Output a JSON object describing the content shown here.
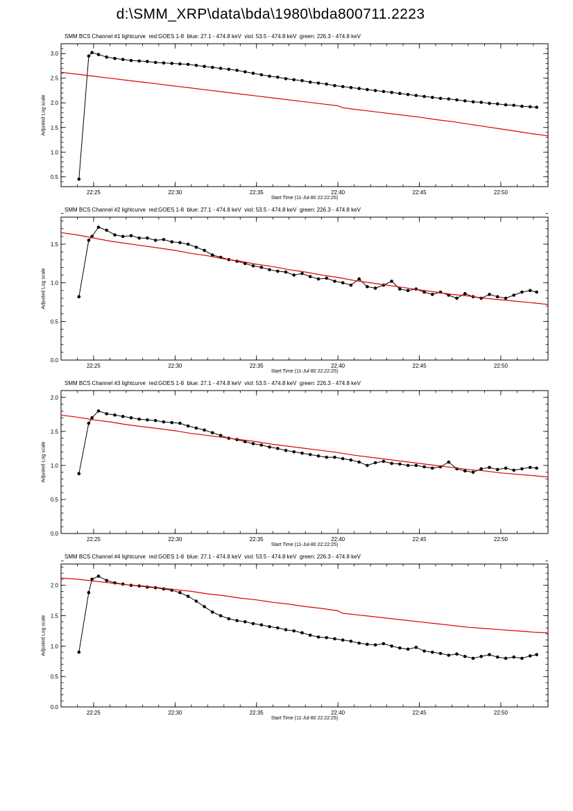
{
  "page": {
    "title": "d:\\SMM_XRP\\data\\bda\\1980\\bda800711.2223"
  },
  "colors": {
    "bcs_series": "#000000",
    "goes_series": "#dd0000",
    "axes": "#000000",
    "background": "#ffffff"
  },
  "chart_data": [
    {
      "type": "line",
      "title": "SMM BCS Channel #1 lightcurve  red:GOES 1-8  blue: 27.1 - 474.8 keV  viol: 53.5 - 474.8 keV  green: 226.3 - 474.8 keV",
      "xlabel": "Start Time (11-Jul-80 22:22:25)",
      "ylabel": "Adjusted Log scale",
      "x_unit": "minutes after 22:00",
      "xlim": [
        23.0,
        52.9
      ],
      "ylim": [
        0.3,
        3.2
      ],
      "y_ticks": [
        0.5,
        1.0,
        1.5,
        2.0,
        2.5,
        3.0
      ],
      "x_ticks": [
        {
          "x": 25,
          "label": "22:25"
        },
        {
          "x": 30,
          "label": "22:30"
        },
        {
          "x": 35,
          "label": "22:35"
        },
        {
          "x": 40,
          "label": "22:40"
        },
        {
          "x": 45,
          "label": "22:45"
        },
        {
          "x": 50,
          "label": "22:50"
        }
      ],
      "grid": false,
      "legend": "none",
      "series": [
        {
          "name": "SMM BCS Channel 1 (black, filled-circle markers)",
          "color": "#000000",
          "marker": true,
          "x": [
            24.1,
            24.7,
            24.9,
            25.3,
            25.8,
            26.3,
            26.8,
            27.3,
            27.8,
            28.3,
            28.8,
            29.3,
            29.8,
            30.3,
            30.8,
            31.3,
            31.8,
            32.3,
            32.8,
            33.3,
            33.8,
            34.3,
            34.8,
            35.3,
            35.8,
            36.3,
            36.8,
            37.3,
            37.8,
            38.3,
            38.8,
            39.3,
            39.8,
            40.3,
            40.8,
            41.3,
            41.8,
            42.3,
            42.8,
            43.3,
            43.8,
            44.3,
            44.8,
            45.3,
            45.8,
            46.3,
            46.8,
            47.3,
            47.8,
            48.3,
            48.8,
            49.3,
            49.8,
            50.3,
            50.8,
            51.3,
            51.8,
            52.2
          ],
          "y": [
            0.45,
            2.95,
            3.02,
            2.98,
            2.93,
            2.9,
            2.88,
            2.86,
            2.85,
            2.84,
            2.82,
            2.81,
            2.8,
            2.79,
            2.78,
            2.76,
            2.74,
            2.72,
            2.7,
            2.68,
            2.66,
            2.63,
            2.6,
            2.57,
            2.54,
            2.52,
            2.49,
            2.47,
            2.45,
            2.42,
            2.4,
            2.38,
            2.35,
            2.33,
            2.31,
            2.29,
            2.27,
            2.25,
            2.23,
            2.21,
            2.19,
            2.17,
            2.15,
            2.13,
            2.11,
            2.09,
            2.08,
            2.06,
            2.04,
            2.02,
            2.01,
            1.99,
            1.98,
            1.96,
            1.95,
            1.93,
            1.92,
            1.91
          ]
        },
        {
          "name": "GOES 1-8 (red line)",
          "color": "#dd0000",
          "marker": false,
          "x": [
            23.0,
            24.0,
            25.0,
            26.0,
            27.0,
            28.0,
            29.0,
            30.0,
            31.0,
            32.0,
            33.0,
            34.0,
            35.0,
            36.0,
            37.0,
            38.0,
            39.0,
            40.0,
            40.3,
            41.0,
            42.0,
            43.0,
            44.0,
            45.0,
            46.0,
            47.0,
            48.0,
            49.0,
            50.0,
            51.0,
            52.0,
            52.9
          ],
          "y": [
            2.62,
            2.58,
            2.54,
            2.5,
            2.46,
            2.42,
            2.38,
            2.34,
            2.3,
            2.26,
            2.22,
            2.18,
            2.14,
            2.1,
            2.06,
            2.02,
            1.98,
            1.94,
            1.9,
            1.87,
            1.83,
            1.79,
            1.75,
            1.71,
            1.66,
            1.62,
            1.57,
            1.52,
            1.47,
            1.42,
            1.37,
            1.33
          ]
        }
      ]
    },
    {
      "type": "line",
      "title": "SMM BCS Channel #2 lightcurve  red:GOES 1-8  blue: 27.1 - 474.8 keV  viol: 53.5 - 474.8 keV  green: 226.3 - 474.8 keV",
      "xlabel": "Start Time (11-Jul-80 22:22:25)",
      "ylabel": "Adjusted Log scale",
      "x_unit": "minutes after 22:00",
      "xlim": [
        23.0,
        52.9
      ],
      "ylim": [
        0.0,
        1.85
      ],
      "y_ticks": [
        0.0,
        0.5,
        1.0,
        1.5
      ],
      "x_ticks": [
        {
          "x": 25,
          "label": "22:25"
        },
        {
          "x": 30,
          "label": "22:30"
        },
        {
          "x": 35,
          "label": "22:35"
        },
        {
          "x": 40,
          "label": "22:40"
        },
        {
          "x": 45,
          "label": "22:45"
        },
        {
          "x": 50,
          "label": "22:50"
        }
      ],
      "grid": false,
      "legend": "none",
      "series": [
        {
          "name": "SMM BCS Channel 2 (black, filled-circle markers)",
          "color": "#000000",
          "marker": true,
          "x": [
            24.1,
            24.7,
            24.9,
            25.3,
            25.8,
            26.3,
            26.8,
            27.3,
            27.8,
            28.3,
            28.8,
            29.3,
            29.8,
            30.3,
            30.8,
            31.3,
            31.8,
            32.3,
            32.8,
            33.3,
            33.8,
            34.3,
            34.8,
            35.3,
            35.8,
            36.3,
            36.8,
            37.3,
            37.8,
            38.3,
            38.8,
            39.3,
            39.8,
            40.3,
            40.8,
            41.3,
            41.8,
            42.3,
            42.8,
            43.3,
            43.8,
            44.3,
            44.8,
            45.3,
            45.8,
            46.3,
            46.8,
            47.3,
            47.8,
            48.3,
            48.8,
            49.3,
            49.8,
            50.3,
            50.8,
            51.3,
            51.8,
            52.2
          ],
          "y": [
            0.82,
            1.55,
            1.6,
            1.72,
            1.68,
            1.62,
            1.6,
            1.61,
            1.58,
            1.58,
            1.55,
            1.56,
            1.53,
            1.52,
            1.5,
            1.46,
            1.42,
            1.36,
            1.33,
            1.3,
            1.28,
            1.25,
            1.22,
            1.2,
            1.17,
            1.15,
            1.14,
            1.1,
            1.12,
            1.08,
            1.05,
            1.06,
            1.02,
            1.0,
            0.97,
            1.05,
            0.95,
            0.93,
            0.97,
            1.02,
            0.92,
            0.9,
            0.92,
            0.88,
            0.85,
            0.88,
            0.84,
            0.8,
            0.86,
            0.82,
            0.8,
            0.85,
            0.82,
            0.8,
            0.84,
            0.88,
            0.9,
            0.88
          ]
        },
        {
          "name": "GOES 1-8 (red line)",
          "color": "#dd0000",
          "marker": false,
          "x": [
            23.0,
            24.0,
            25.0,
            26.0,
            27.0,
            28.0,
            29.0,
            30.0,
            31.0,
            32.0,
            33.0,
            34.0,
            35.0,
            36.0,
            37.0,
            38.0,
            39.0,
            40.0,
            41.0,
            42.0,
            43.0,
            44.0,
            45.0,
            46.0,
            47.0,
            48.0,
            49.0,
            50.0,
            51.0,
            52.0,
            52.9
          ],
          "y": [
            1.65,
            1.62,
            1.58,
            1.54,
            1.51,
            1.48,
            1.45,
            1.42,
            1.38,
            1.35,
            1.31,
            1.28,
            1.24,
            1.21,
            1.17,
            1.14,
            1.1,
            1.07,
            1.03,
            1.0,
            0.97,
            0.94,
            0.91,
            0.88,
            0.85,
            0.83,
            0.8,
            0.78,
            0.76,
            0.74,
            0.72
          ]
        }
      ]
    },
    {
      "type": "line",
      "title": "SMM BCS Channel #3 lightcurve  red:GOES 1-8  blue: 27.1 - 474.8 keV  viol: 53.5 - 474.8 keV  green: 226.3 - 474.8 keV",
      "xlabel": "Start Time (11-Jul-80 22:22:25)",
      "ylabel": "Adjusted Log scale",
      "x_unit": "minutes after 22:00",
      "xlim": [
        23.0,
        52.9
      ],
      "ylim": [
        0.0,
        2.1
      ],
      "y_ticks": [
        0.0,
        0.5,
        1.0,
        1.5,
        2.0
      ],
      "x_ticks": [
        {
          "x": 25,
          "label": "22:25"
        },
        {
          "x": 30,
          "label": "22:30"
        },
        {
          "x": 35,
          "label": "22:35"
        },
        {
          "x": 40,
          "label": "22:40"
        },
        {
          "x": 45,
          "label": "22:45"
        },
        {
          "x": 50,
          "label": "22:50"
        }
      ],
      "grid": false,
      "legend": "none",
      "series": [
        {
          "name": "SMM BCS Channel 3 (black, filled-circle markers)",
          "color": "#000000",
          "marker": true,
          "x": [
            24.1,
            24.7,
            24.9,
            25.3,
            25.8,
            26.3,
            26.8,
            27.3,
            27.8,
            28.3,
            28.8,
            29.3,
            29.8,
            30.3,
            30.8,
            31.3,
            31.8,
            32.3,
            32.8,
            33.3,
            33.8,
            34.3,
            34.8,
            35.3,
            35.8,
            36.3,
            36.8,
            37.3,
            37.8,
            38.3,
            38.8,
            39.3,
            39.8,
            40.3,
            40.8,
            41.3,
            41.8,
            42.3,
            42.8,
            43.3,
            43.8,
            44.3,
            44.8,
            45.3,
            45.8,
            46.3,
            46.8,
            47.3,
            47.8,
            48.3,
            48.8,
            49.3,
            49.8,
            50.3,
            50.8,
            51.3,
            51.8,
            52.2
          ],
          "y": [
            0.88,
            1.62,
            1.7,
            1.8,
            1.76,
            1.74,
            1.72,
            1.7,
            1.68,
            1.67,
            1.66,
            1.64,
            1.63,
            1.62,
            1.58,
            1.55,
            1.52,
            1.48,
            1.44,
            1.4,
            1.38,
            1.35,
            1.32,
            1.3,
            1.27,
            1.25,
            1.22,
            1.2,
            1.18,
            1.16,
            1.14,
            1.12,
            1.12,
            1.1,
            1.08,
            1.05,
            1.0,
            1.04,
            1.06,
            1.03,
            1.02,
            1.0,
            1.0,
            0.98,
            0.96,
            0.98,
            1.05,
            0.95,
            0.92,
            0.9,
            0.95,
            0.97,
            0.94,
            0.96,
            0.93,
            0.95,
            0.97,
            0.96
          ]
        },
        {
          "name": "GOES 1-8 (red line)",
          "color": "#dd0000",
          "marker": false,
          "x": [
            23.0,
            24.0,
            25.0,
            26.0,
            27.0,
            28.0,
            29.0,
            30.0,
            31.0,
            32.0,
            33.0,
            34.0,
            35.0,
            36.0,
            37.0,
            38.0,
            39.0,
            40.0,
            41.0,
            42.0,
            43.0,
            44.0,
            45.0,
            46.0,
            47.0,
            48.0,
            49.0,
            50.0,
            51.0,
            52.0,
            52.9
          ],
          "y": [
            1.74,
            1.71,
            1.67,
            1.64,
            1.6,
            1.57,
            1.54,
            1.51,
            1.47,
            1.44,
            1.41,
            1.38,
            1.35,
            1.31,
            1.28,
            1.25,
            1.22,
            1.19,
            1.15,
            1.12,
            1.09,
            1.06,
            1.03,
            1.0,
            0.97,
            0.94,
            0.92,
            0.89,
            0.87,
            0.85,
            0.83
          ]
        }
      ]
    },
    {
      "type": "line",
      "title": "SMM BCS Channel #4 lightcurve  red:GOES 1-8  blue: 27.1 - 474.8 keV  viol: 53.5 - 474.8 keV  green: 226.3 - 474.8 keV",
      "xlabel": "Start Time (11-Jul-80 22:22:25)",
      "ylabel": "Adjusted Log scale",
      "x_unit": "minutes after 22:00",
      "xlim": [
        23.0,
        52.9
      ],
      "ylim": [
        0.0,
        2.35
      ],
      "y_ticks": [
        0.0,
        0.5,
        1.0,
        1.5,
        2.0
      ],
      "x_ticks": [
        {
          "x": 25,
          "label": "22:25"
        },
        {
          "x": 30,
          "label": "22:30"
        },
        {
          "x": 35,
          "label": "22:35"
        },
        {
          "x": 40,
          "label": "22:40"
        },
        {
          "x": 45,
          "label": "22:45"
        },
        {
          "x": 50,
          "label": "22:50"
        }
      ],
      "grid": false,
      "legend": "none",
      "series": [
        {
          "name": "SMM BCS Channel 4 (black, filled-circle markers)",
          "color": "#000000",
          "marker": true,
          "x": [
            24.1,
            24.7,
            24.9,
            25.3,
            25.8,
            26.3,
            26.8,
            27.3,
            27.8,
            28.3,
            28.8,
            29.3,
            29.8,
            30.3,
            30.8,
            31.3,
            31.8,
            32.3,
            32.8,
            33.3,
            33.8,
            34.3,
            34.8,
            35.3,
            35.8,
            36.3,
            36.8,
            37.3,
            37.8,
            38.3,
            38.8,
            39.3,
            39.8,
            40.3,
            40.8,
            41.3,
            41.8,
            42.3,
            42.8,
            43.3,
            43.8,
            44.3,
            44.8,
            45.3,
            45.8,
            46.3,
            46.8,
            47.3,
            47.8,
            48.3,
            48.8,
            49.3,
            49.8,
            50.3,
            50.8,
            51.3,
            51.8,
            52.2
          ],
          "y": [
            0.9,
            1.88,
            2.1,
            2.15,
            2.08,
            2.04,
            2.02,
            2.0,
            1.99,
            1.97,
            1.96,
            1.94,
            1.92,
            1.88,
            1.82,
            1.74,
            1.65,
            1.56,
            1.5,
            1.45,
            1.42,
            1.4,
            1.37,
            1.35,
            1.32,
            1.3,
            1.27,
            1.25,
            1.22,
            1.18,
            1.15,
            1.14,
            1.12,
            1.1,
            1.08,
            1.05,
            1.03,
            1.02,
            1.04,
            1.0,
            0.97,
            0.95,
            0.98,
            0.92,
            0.9,
            0.88,
            0.85,
            0.87,
            0.83,
            0.8,
            0.83,
            0.86,
            0.82,
            0.8,
            0.82,
            0.8,
            0.84,
            0.86
          ]
        },
        {
          "name": "GOES 1-8 (red line)",
          "color": "#dd0000",
          "marker": false,
          "x": [
            23.0,
            24.0,
            25.0,
            26.0,
            27.0,
            28.0,
            29.0,
            30.0,
            31.0,
            32.0,
            33.0,
            34.0,
            35.0,
            36.0,
            37.0,
            38.0,
            39.0,
            40.0,
            40.3,
            41.0,
            42.0,
            43.0,
            44.0,
            45.0,
            46.0,
            47.0,
            48.0,
            49.0,
            50.0,
            51.0,
            52.0,
            52.9
          ],
          "y": [
            2.12,
            2.1,
            2.07,
            2.04,
            2.01,
            1.99,
            1.96,
            1.93,
            1.9,
            1.86,
            1.83,
            1.79,
            1.76,
            1.72,
            1.69,
            1.65,
            1.62,
            1.58,
            1.54,
            1.52,
            1.49,
            1.46,
            1.43,
            1.4,
            1.37,
            1.34,
            1.31,
            1.29,
            1.27,
            1.25,
            1.23,
            1.22
          ]
        }
      ]
    }
  ]
}
